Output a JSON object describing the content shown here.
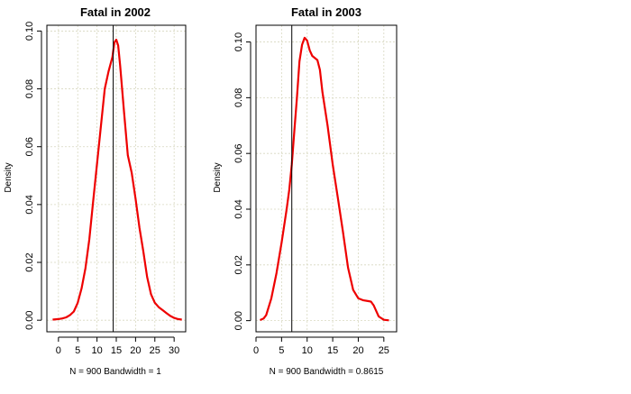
{
  "chart_data": [
    {
      "type": "line",
      "title": "Fatal in 2002",
      "xlabel": "N = 900   Bandwidth = 1",
      "ylabel": "Density",
      "xlim": [
        -3,
        33
      ],
      "ylim": [
        -0.004,
        0.102
      ],
      "xticks": [
        0,
        5,
        10,
        15,
        20,
        25,
        30
      ],
      "yticks": [
        0.0,
        0.02,
        0.04,
        0.06,
        0.08,
        0.1
      ],
      "ytick_labels": [
        "0.00",
        "0.02",
        "0.04",
        "0.06",
        "0.08",
        "0.10"
      ],
      "grid": true,
      "vline_x": 14.2,
      "series": [
        {
          "color": "#ee0000",
          "x": [
            -1.5,
            0,
            1,
            2,
            3,
            4,
            5,
            6,
            7,
            8,
            9,
            10,
            11,
            12,
            13,
            14,
            14.5,
            15,
            15.5,
            16,
            17,
            18,
            19,
            20,
            21,
            22,
            23,
            24,
            25,
            26,
            27,
            28,
            29,
            30,
            31,
            32
          ],
          "y": [
            0.0002,
            0.0004,
            0.0006,
            0.001,
            0.0018,
            0.003,
            0.006,
            0.011,
            0.018,
            0.028,
            0.041,
            0.054,
            0.067,
            0.08,
            0.086,
            0.091,
            0.096,
            0.097,
            0.095,
            0.088,
            0.072,
            0.057,
            0.051,
            0.042,
            0.032,
            0.024,
            0.015,
            0.009,
            0.006,
            0.0045,
            0.0035,
            0.0025,
            0.0015,
            0.0008,
            0.0004,
            0.0002
          ]
        }
      ]
    },
    {
      "type": "line",
      "title": "Fatal in 2003",
      "xlabel": "N = 900   Bandwidth = 0.8615",
      "ylabel": "Density",
      "xlim": [
        0,
        27.5
      ],
      "ylim": [
        -0.004,
        0.106
      ],
      "xticks": [
        0,
        5,
        10,
        15,
        20,
        25
      ],
      "yticks": [
        0.0,
        0.02,
        0.04,
        0.06,
        0.08,
        0.1
      ],
      "ytick_labels": [
        "0.00",
        "0.02",
        "0.04",
        "0.06",
        "0.08",
        "0.10"
      ],
      "grid": true,
      "vline_x": 7,
      "series": [
        {
          "color": "#ee0000",
          "x": [
            0.8,
            1.5,
            2,
            3,
            4,
            5,
            6,
            6.5,
            7,
            7.5,
            8,
            8.5,
            9,
            9.5,
            10,
            10.5,
            11,
            12,
            12.5,
            13,
            14,
            15,
            16,
            17,
            18,
            19,
            20,
            21,
            22,
            22.5,
            23,
            23.5,
            24,
            25,
            26
          ],
          "y": [
            0.0002,
            0.0008,
            0.002,
            0.008,
            0.017,
            0.028,
            0.04,
            0.047,
            0.056,
            0.068,
            0.08,
            0.093,
            0.099,
            0.1015,
            0.1005,
            0.097,
            0.095,
            0.0935,
            0.09,
            0.082,
            0.07,
            0.056,
            0.044,
            0.032,
            0.019,
            0.011,
            0.008,
            0.0073,
            0.007,
            0.0068,
            0.0055,
            0.0035,
            0.0015,
            0.0003,
            0.0001
          ]
        }
      ]
    }
  ]
}
